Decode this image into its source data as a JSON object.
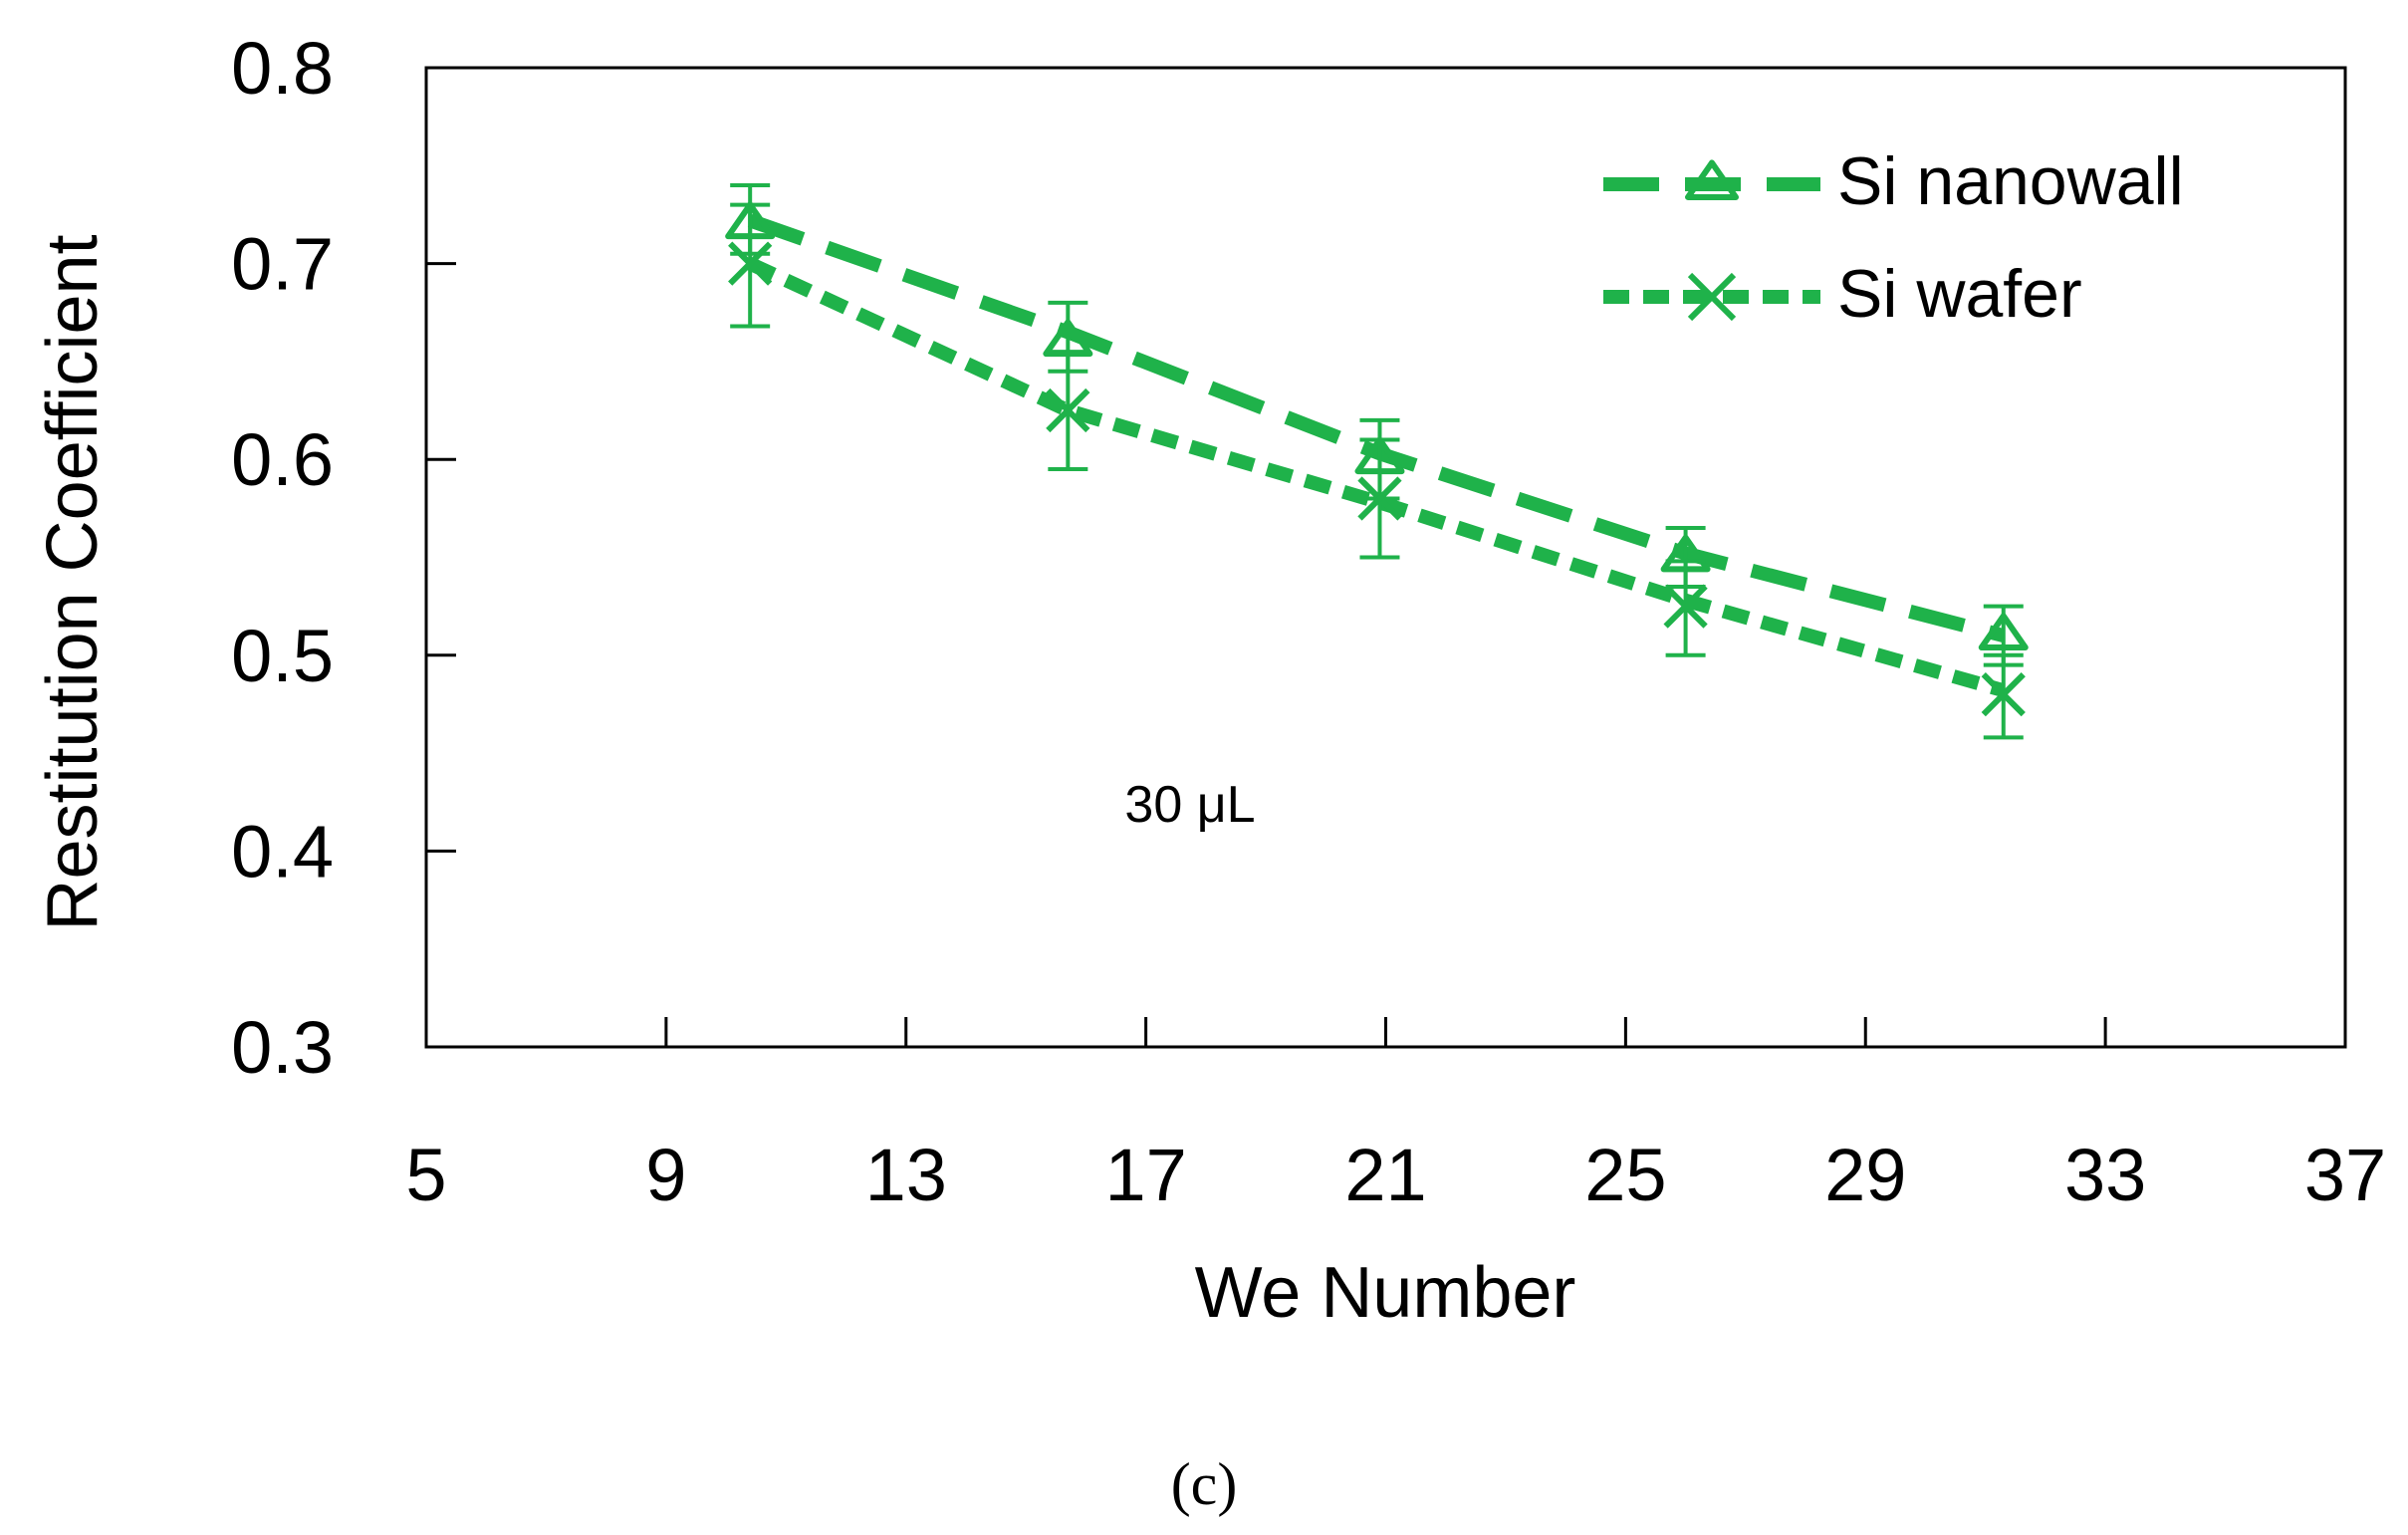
{
  "chart_data": {
    "type": "line",
    "xlabel": "We Number",
    "ylabel": "Restitution Coefficient",
    "xlim": [
      5,
      37
    ],
    "ylim": [
      0.3,
      0.8
    ],
    "xticks": [
      5,
      9,
      13,
      17,
      21,
      25,
      29,
      33,
      37
    ],
    "yticks": [
      0.3,
      0.4,
      0.5,
      0.6,
      0.7,
      0.8
    ],
    "xtick_labels": [
      "5",
      "9",
      "13",
      "17",
      "21",
      "25",
      "29",
      "33",
      "37"
    ],
    "ytick_labels": [
      "0.3",
      "0.4",
      "0.5",
      "0.6",
      "0.7",
      "0.8"
    ],
    "grid": false,
    "legend_position": "top-right",
    "annotation": "30 μL",
    "panel_label": "(c)",
    "series": [
      {
        "name": "Si nanowall",
        "marker": "triangle",
        "line_style": "long-dash",
        "color": "#1fb24a",
        "x": [
          10.4,
          15.7,
          20.9,
          26.0,
          31.3
        ],
        "y": [
          0.72,
          0.66,
          0.6,
          0.55,
          0.51
        ],
        "err_lo": [
          0.705,
          0.645,
          0.58,
          0.535,
          0.495
        ],
        "err_hi": [
          0.74,
          0.68,
          0.62,
          0.565,
          0.525
        ],
        "trend": [
          [
            10.4,
            0.722
          ],
          [
            15.7,
            0.665
          ],
          [
            20.9,
            0.603
          ],
          [
            26.0,
            0.552
          ],
          [
            31.3,
            0.51
          ]
        ]
      },
      {
        "name": "Si wafer",
        "marker": "x",
        "line_style": "short-dash",
        "color": "#1fb24a",
        "x": [
          10.4,
          15.7,
          20.9,
          26.0,
          31.3
        ],
        "y": [
          0.7,
          0.625,
          0.58,
          0.525,
          0.48
        ],
        "err_lo": [
          0.668,
          0.595,
          0.55,
          0.5,
          0.458
        ],
        "err_hi": [
          0.73,
          0.655,
          0.61,
          0.548,
          0.5
        ],
        "trend": [
          [
            10.4,
            0.7
          ],
          [
            15.7,
            0.625
          ],
          [
            20.9,
            0.578
          ],
          [
            26.0,
            0.528
          ],
          [
            31.3,
            0.482
          ]
        ]
      }
    ]
  }
}
